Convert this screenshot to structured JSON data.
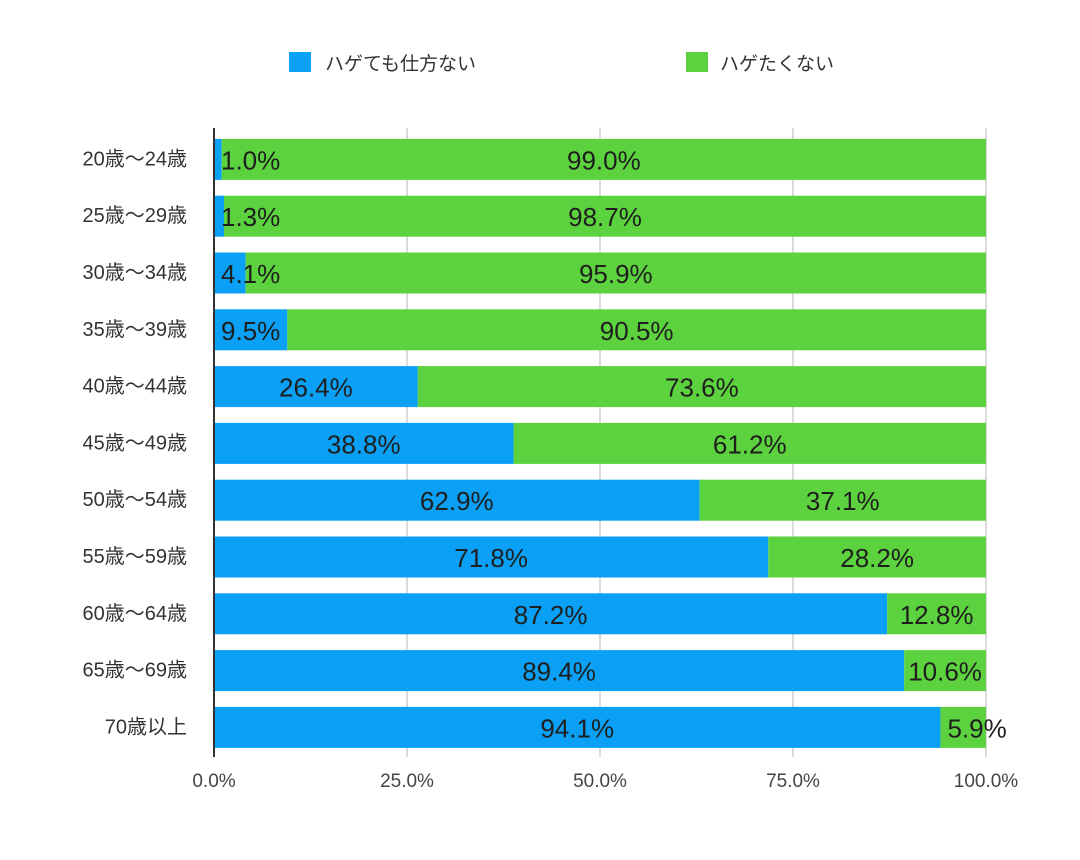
{
  "chart_data": {
    "type": "bar",
    "orientation": "horizontal",
    "stacked": "percent",
    "title": "",
    "xlabel": "",
    "ylabel": "",
    "categories": [
      "20歳～24歳",
      "25歳～29歳",
      "30歳～34歳",
      "35歳～39歳",
      "40歳～44歳",
      "45歳～49歳",
      "50歳～54歳",
      "55歳～59歳",
      "60歳～64歳",
      "65歳～69歳",
      "70歳以上"
    ],
    "series": [
      {
        "name": "ハゲても仕方ない",
        "color": "#0aa0f5",
        "values": [
          1.0,
          1.3,
          4.1,
          9.5,
          26.4,
          38.8,
          62.9,
          71.8,
          87.2,
          89.4,
          94.1
        ]
      },
      {
        "name": "ハゲたくない",
        "color": "#5cd23e",
        "values": [
          99.0,
          98.7,
          95.9,
          90.5,
          73.6,
          61.2,
          37.1,
          28.2,
          12.8,
          10.6,
          5.9
        ]
      }
    ],
    "xlim": [
      0,
      100
    ],
    "xticks": [
      0,
      25,
      50,
      75,
      100
    ],
    "xtick_labels": [
      "0.0%",
      "25.0%",
      "50.0%",
      "75.0%",
      "100.0%"
    ],
    "data_labels": true,
    "legend": "top",
    "grid": true,
    "axis_color": "#333333",
    "grid_color": "#cfcfcf"
  }
}
